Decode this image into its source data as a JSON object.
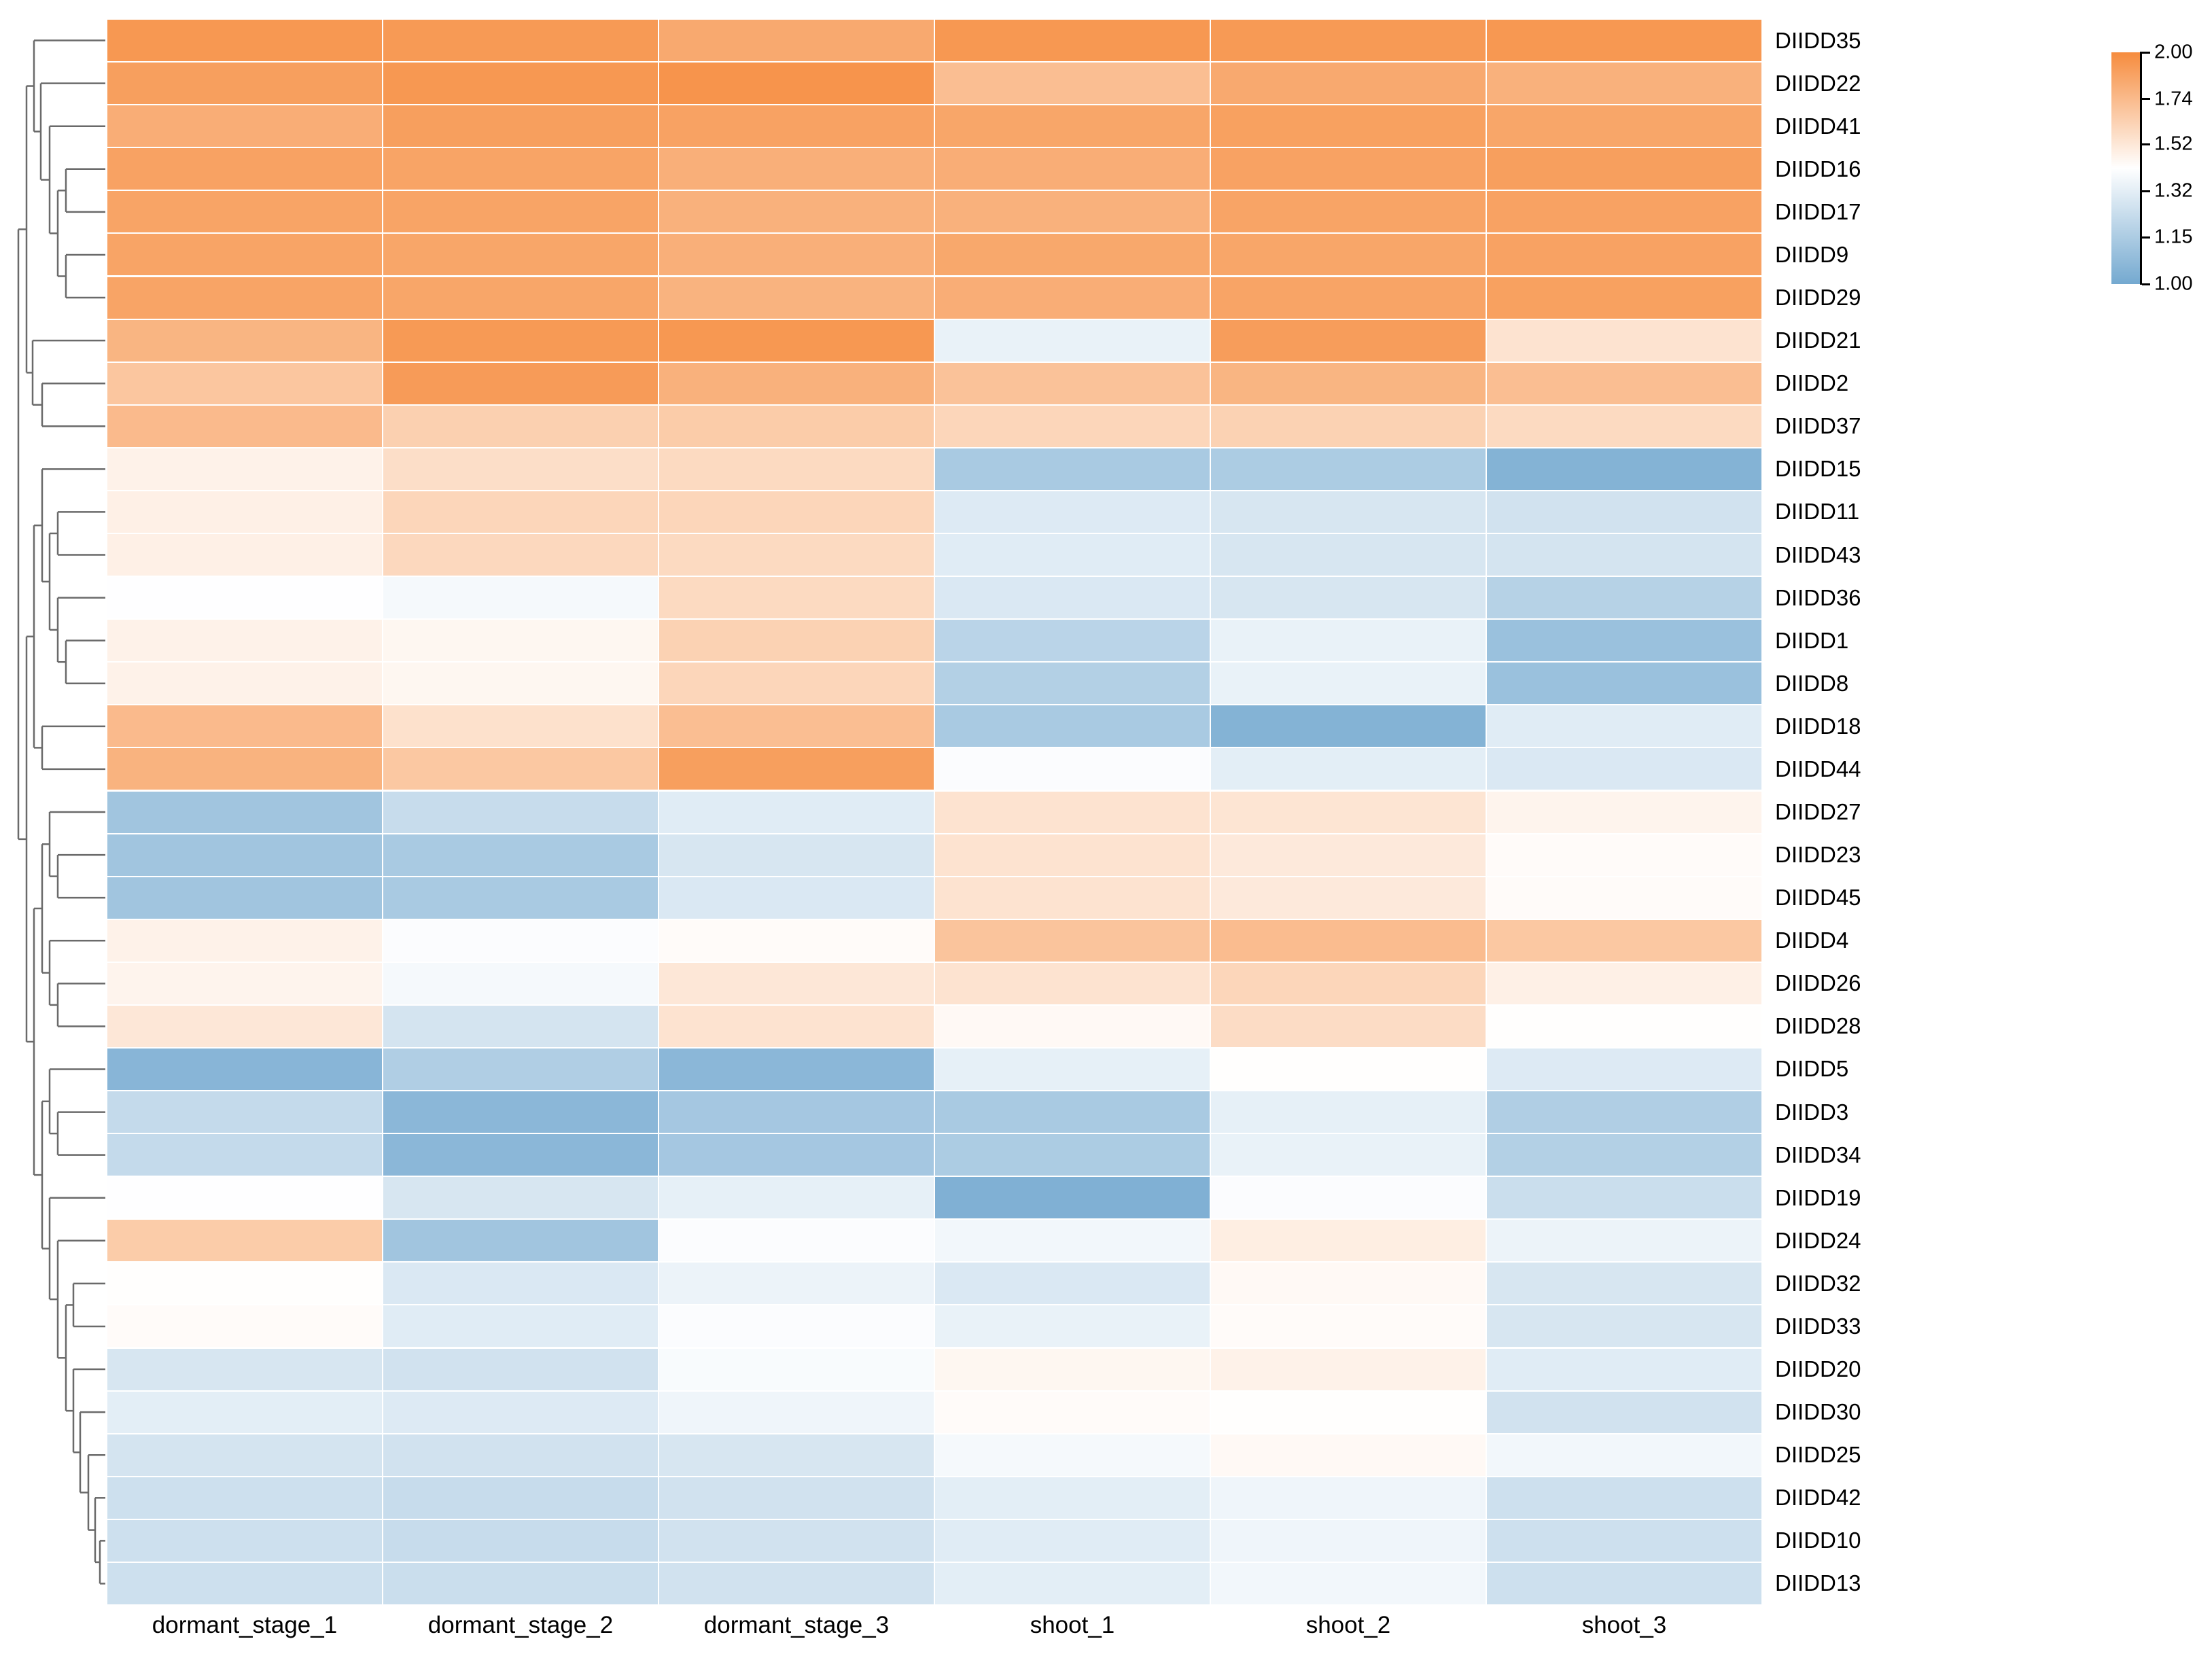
{
  "figure": {
    "kind": "clustered expression heatmap with row dendrogram",
    "background": "#ffffff"
  },
  "chart_data": {
    "type": "heatmap",
    "title": "",
    "columns": [
      "dormant_stage_1",
      "dormant_stage_2",
      "dormant_stage_3",
      "shoot_1",
      "shoot_2",
      "shoot_3"
    ],
    "rows": [
      "DIIDD35",
      "DIIDD22",
      "DIIDD41",
      "DIIDD16",
      "DIIDD17",
      "DIIDD9",
      "DIIDD29",
      "DIIDD21",
      "DIIDD2",
      "DIIDD37",
      "DIIDD15",
      "DIIDD11",
      "DIIDD43",
      "DIIDD36",
      "DIIDD1",
      "DIIDD8",
      "DIIDD18",
      "DIIDD44",
      "DIIDD27",
      "DIIDD23",
      "DIIDD45",
      "DIIDD4",
      "DIIDD26",
      "DIIDD28",
      "DIIDD5",
      "DIIDD3",
      "DIIDD34",
      "DIIDD19",
      "DIIDD24",
      "DIIDD32",
      "DIIDD33",
      "DIIDD20",
      "DIIDD30",
      "DIIDD25",
      "DIIDD42",
      "DIIDD10",
      "DIIDD13"
    ],
    "values": [
      [
        1.93,
        1.92,
        1.83,
        1.93,
        1.92,
        1.93
      ],
      [
        1.89,
        1.93,
        1.95,
        1.72,
        1.83,
        1.79
      ],
      [
        1.81,
        1.89,
        1.87,
        1.85,
        1.88,
        1.85
      ],
      [
        1.87,
        1.86,
        1.8,
        1.81,
        1.87,
        1.89
      ],
      [
        1.86,
        1.86,
        1.79,
        1.79,
        1.86,
        1.87
      ],
      [
        1.86,
        1.85,
        1.8,
        1.84,
        1.85,
        1.87
      ],
      [
        1.86,
        1.85,
        1.78,
        1.81,
        1.86,
        1.88
      ],
      [
        1.77,
        1.92,
        1.93,
        1.34,
        1.9,
        1.54
      ],
      [
        1.68,
        1.91,
        1.79,
        1.7,
        1.77,
        1.72
      ],
      [
        1.74,
        1.63,
        1.65,
        1.6,
        1.62,
        1.58
      ],
      [
        1.47,
        1.56,
        1.58,
        1.14,
        1.15,
        1.04
      ],
      [
        1.48,
        1.6,
        1.6,
        1.3,
        1.28,
        1.26
      ],
      [
        1.48,
        1.59,
        1.58,
        1.31,
        1.28,
        1.27
      ],
      [
        1.41,
        1.38,
        1.58,
        1.29,
        1.28,
        1.18
      ],
      [
        1.47,
        1.45,
        1.62,
        1.19,
        1.34,
        1.1
      ],
      [
        1.47,
        1.45,
        1.6,
        1.17,
        1.34,
        1.1
      ],
      [
        1.74,
        1.55,
        1.72,
        1.14,
        1.04,
        1.31
      ],
      [
        1.78,
        1.67,
        1.89,
        1.4,
        1.32,
        1.29
      ],
      [
        1.12,
        1.23,
        1.31,
        1.54,
        1.53,
        1.46
      ],
      [
        1.12,
        1.14,
        1.28,
        1.54,
        1.51,
        1.43
      ],
      [
        1.12,
        1.14,
        1.29,
        1.54,
        1.51,
        1.43
      ],
      [
        1.47,
        1.4,
        1.43,
        1.69,
        1.73,
        1.67
      ],
      [
        1.46,
        1.38,
        1.52,
        1.54,
        1.6,
        1.48
      ],
      [
        1.52,
        1.27,
        1.54,
        1.44,
        1.57,
        1.42
      ],
      [
        1.05,
        1.16,
        1.06,
        1.33,
        1.42,
        1.3
      ],
      [
        1.22,
        1.06,
        1.13,
        1.14,
        1.33,
        1.16
      ],
      [
        1.22,
        1.06,
        1.13,
        1.15,
        1.34,
        1.17
      ],
      [
        1.41,
        1.28,
        1.33,
        1.03,
        1.4,
        1.24
      ],
      [
        1.65,
        1.12,
        1.4,
        1.37,
        1.49,
        1.35
      ],
      [
        1.42,
        1.29,
        1.35,
        1.29,
        1.44,
        1.28
      ],
      [
        1.43,
        1.31,
        1.4,
        1.34,
        1.43,
        1.28
      ],
      [
        1.28,
        1.26,
        1.39,
        1.45,
        1.47,
        1.31
      ],
      [
        1.32,
        1.3,
        1.36,
        1.43,
        1.42,
        1.26
      ],
      [
        1.27,
        1.26,
        1.28,
        1.38,
        1.44,
        1.37
      ],
      [
        1.25,
        1.23,
        1.26,
        1.32,
        1.36,
        1.25
      ],
      [
        1.25,
        1.23,
        1.26,
        1.31,
        1.36,
        1.25
      ],
      [
        1.25,
        1.24,
        1.26,
        1.32,
        1.37,
        1.25
      ]
    ],
    "value_domain": [
      1.0,
      2.0
    ],
    "color_scale_type": "log2",
    "grid_lines": "white",
    "legend": {
      "position": "top-right",
      "tick_labels": [
        "2.00",
        "1.74",
        "1.52",
        "1.32",
        "1.15",
        "1.00"
      ],
      "tick_values": [
        2.0,
        1.74,
        1.52,
        1.32,
        1.15,
        1.0
      ],
      "colors": {
        "high": "#F68C3E",
        "mid": "#FFFFFF",
        "low": "#74A9D0"
      }
    },
    "row_dendrogram": {
      "line_color": "#6a6a6a",
      "tree": {
        "h": 27,
        "c": [
          {
            "h": 39,
            "c": [
              {
                "h": 50,
                "c": [
                  0,
                  {
                    "h": 60,
                    "c": [
                      1,
                      {
                        "h": 73,
                        "c": [
                          2,
                          {
                            "h": 85,
                            "c": [
                              {
                                "h": 97,
                                "c": [
                                  3,
                                  4
                                ]
                              },
                              {
                                "h": 97,
                                "c": [
                                  5,
                                  6
                                ]
                              }
                            ]
                          }
                        ]
                      }
                    ]
                  }
                ]
              },
              {
                "h": 48,
                "c": [
                  7,
                  {
                    "h": 62,
                    "c": [
                      8,
                      9
                    ]
                  }
                ]
              }
            ]
          },
          {
            "h": 39,
            "c": [
              {
                "h": 50,
                "c": [
                  {
                    "h": 62,
                    "c": [
                      10,
                      {
                        "h": 73,
                        "c": [
                          {
                            "h": 85,
                            "c": [
                              11,
                              12
                            ]
                          },
                          {
                            "h": 85,
                            "c": [
                              13,
                              {
                                "h": 97,
                                "c": [
                                  14,
                                  15
                                ]
                              }
                            ]
                          }
                        ]
                      }
                    ]
                  },
                  {
                    "h": 62,
                    "c": [
                      16,
                      17
                    ]
                  }
                ]
              },
              {
                "h": 50,
                "c": [
                  {
                    "h": 62,
                    "c": [
                      {
                        "h": 73,
                        "c": [
                          18,
                          {
                            "h": 85,
                            "c": [
                              19,
                              20
                            ]
                          }
                        ]
                      },
                      {
                        "h": 73,
                        "c": [
                          21,
                          {
                            "h": 85,
                            "c": [
                              22,
                              23
                            ]
                          }
                        ]
                      }
                    ]
                  },
                  {
                    "h": 62,
                    "c": [
                      {
                        "h": 73,
                        "c": [
                          24,
                          {
                            "h": 85,
                            "c": [
                              25,
                              26
                            ]
                          }
                        ]
                      },
                      {
                        "h": 73,
                        "c": [
                          27,
                          {
                            "h": 85,
                            "c": [
                              28,
                              {
                                "h": 97,
                                "c": [
                                  {
                                    "h": 108,
                                    "c": [
                                      29,
                                      30
                                    ]
                                  },
                                  {
                                    "h": 108,
                                    "c": [
                                      31,
                                      {
                                        "h": 118,
                                        "c": [
                                          32,
                                          {
                                            "h": 130,
                                            "c": [
                                              33,
                                              {
                                                "h": 140,
                                                "c": [
                                                  34,
                                                  {
                                                    "h": 147,
                                                    "c": [
                                                      35,
                                                      36
                                                    ]
                                                  }
                                                ]
                                              }
                                            ]
                                          }
                                        ]
                                      }
                                    ]
                                  }
                                ]
                              }
                            ]
                          }
                        ]
                      }
                    ]
                  }
                ]
              }
            ]
          }
        ]
      }
    }
  }
}
